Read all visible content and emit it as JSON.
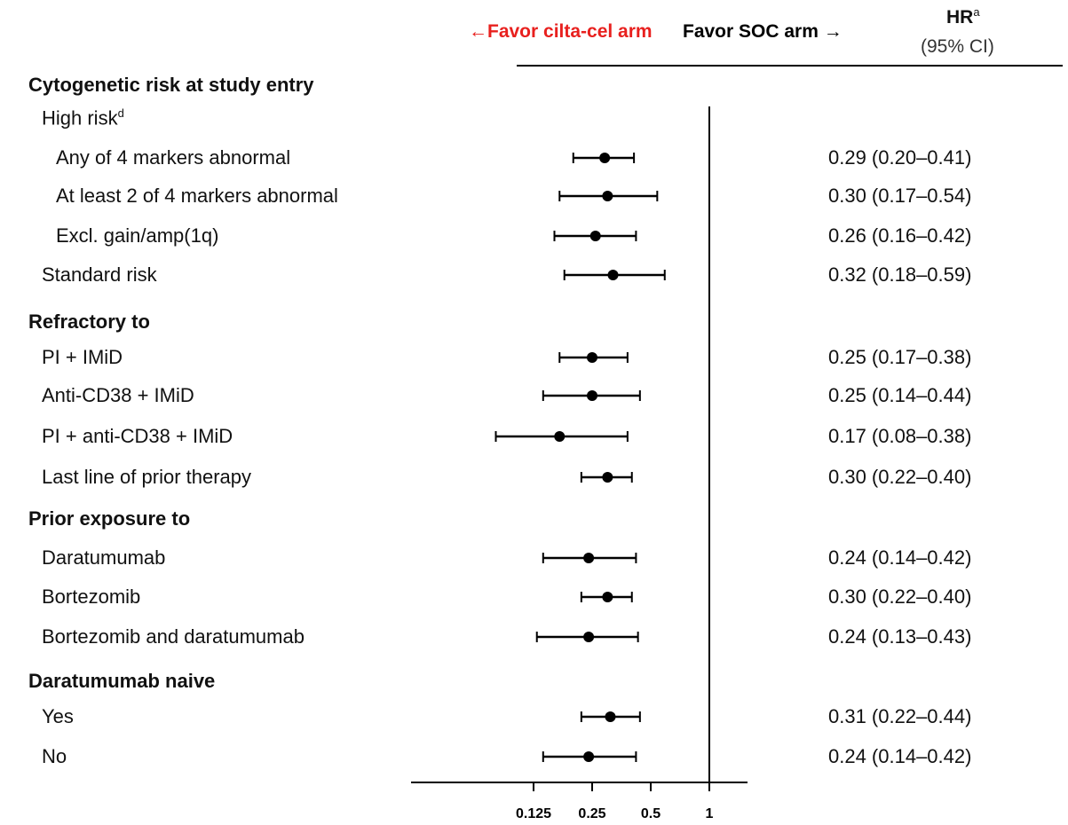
{
  "header": {
    "favor_left": "←Favor cilta-cel arm",
    "favor_right": "Favor SOC arm →",
    "hr_title": "HR",
    "hr_title_sup": "a",
    "hr_subtitle": "(95% CI)"
  },
  "colors": {
    "favor_left": "#e8201e",
    "text": "#111111",
    "axis": "#000000"
  },
  "rows": [
    {
      "label": "Cytogenetic risk at study entry",
      "section": true,
      "indent": 0
    },
    {
      "label": "High risk",
      "sup": "d",
      "indent": 1
    },
    {
      "label": "Any of 4 markers abnormal",
      "indent": 2,
      "hr": "0.29 (0.20–0.41)"
    },
    {
      "label": "At least 2 of 4 markers abnormal",
      "indent": 2,
      "hr": "0.30 (0.17–0.54)"
    },
    {
      "label": "Excl. gain/amp(1q)",
      "indent": 2,
      "hr": "0.26 (0.16–0.42)"
    },
    {
      "label": "Standard risk",
      "indent": 1,
      "hr": "0.32 (0.18–0.59)"
    },
    {
      "label": "Refractory to",
      "section": true,
      "indent": 0
    },
    {
      "label": "PI + IMiD",
      "indent": 1,
      "hr": "0.25 (0.17–0.38)"
    },
    {
      "label": "Anti-CD38 + IMiD",
      "indent": 1,
      "hr": "0.25 (0.14–0.44)"
    },
    {
      "label": "PI + anti-CD38 + IMiD",
      "indent": 1,
      "hr": "0.17 (0.08–0.38)"
    },
    {
      "label": "Last line of prior therapy",
      "indent": 1,
      "hr": "0.30 (0.22–0.40)"
    },
    {
      "label": "Prior exposure to",
      "section": true,
      "indent": 0
    },
    {
      "label": "Daratumumab",
      "indent": 1,
      "hr": "0.24 (0.14–0.42)"
    },
    {
      "label": "Bortezomib",
      "indent": 1,
      "hr": "0.30 (0.22–0.40)"
    },
    {
      "label": "Bortezomib and daratumumab",
      "indent": 1,
      "hr": "0.24 (0.13–0.43)"
    },
    {
      "label": "Daratumumab naive",
      "section": true,
      "indent": 0
    },
    {
      "label": "Yes",
      "indent": 1,
      "hr": "0.31 (0.22–0.44)"
    },
    {
      "label": "No",
      "indent": 1,
      "hr": "0.24 (0.14–0.42)"
    }
  ],
  "chart_data": {
    "type": "forest",
    "scale": "log2",
    "reference_line": 1,
    "xticks": [
      0.125,
      0.25,
      0.5,
      1
    ],
    "xtick_labels": [
      "0.125",
      "0.25",
      "0.5",
      "1"
    ],
    "estimates": [
      {
        "label": "Any of 4 markers abnormal",
        "hr": 0.29,
        "lo": 0.2,
        "hi": 0.41
      },
      {
        "label": "At least 2 of 4 markers abnormal",
        "hr": 0.3,
        "lo": 0.17,
        "hi": 0.54
      },
      {
        "label": "Excl. gain/amp(1q)",
        "hr": 0.26,
        "lo": 0.16,
        "hi": 0.42
      },
      {
        "label": "Standard risk",
        "hr": 0.32,
        "lo": 0.18,
        "hi": 0.59
      },
      {
        "label": "PI + IMiD",
        "hr": 0.25,
        "lo": 0.17,
        "hi": 0.38
      },
      {
        "label": "Anti-CD38 + IMiD",
        "hr": 0.25,
        "lo": 0.14,
        "hi": 0.44
      },
      {
        "label": "PI + anti-CD38 + IMiD",
        "hr": 0.17,
        "lo": 0.08,
        "hi": 0.38
      },
      {
        "label": "Last line of prior therapy",
        "hr": 0.3,
        "lo": 0.22,
        "hi": 0.4
      },
      {
        "label": "Daratumumab",
        "hr": 0.24,
        "lo": 0.14,
        "hi": 0.42
      },
      {
        "label": "Bortezomib",
        "hr": 0.3,
        "lo": 0.22,
        "hi": 0.4
      },
      {
        "label": "Bortezomib and daratumumab",
        "hr": 0.24,
        "lo": 0.13,
        "hi": 0.43
      },
      {
        "label": "Yes",
        "hr": 0.31,
        "lo": 0.22,
        "hi": 0.44
      },
      {
        "label": "No",
        "hr": 0.24,
        "lo": 0.14,
        "hi": 0.42
      }
    ]
  }
}
